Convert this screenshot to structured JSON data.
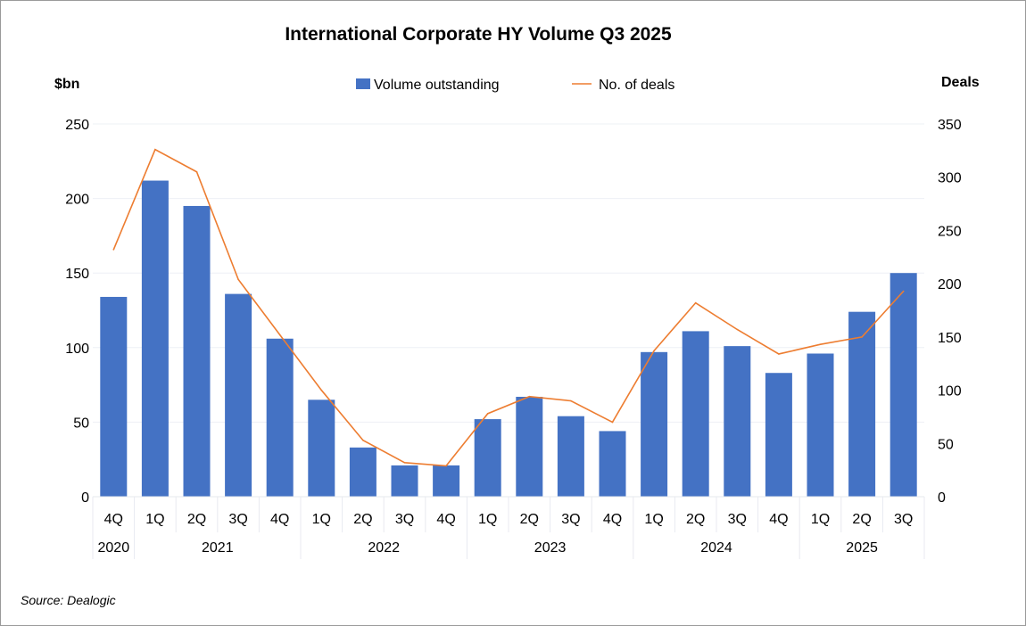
{
  "chart_data": {
    "type": "bar+line",
    "title": "International Corporate HY Volume Q3 2025",
    "y_left_label": "$bn",
    "y_right_label": "Deals",
    "y_left_range": [
      0,
      250
    ],
    "y_left_ticks": [
      0,
      50,
      100,
      150,
      200,
      250
    ],
    "y_right_range": [
      0,
      350
    ],
    "y_right_ticks": [
      0,
      50,
      100,
      150,
      200,
      250,
      300,
      350
    ],
    "grid": true,
    "legend_position": "top",
    "categories": [
      "4Q",
      "1Q",
      "2Q",
      "3Q",
      "4Q",
      "1Q",
      "2Q",
      "3Q",
      "4Q",
      "1Q",
      "2Q",
      "3Q",
      "4Q",
      "1Q",
      "2Q",
      "3Q",
      "4Q",
      "1Q",
      "2Q",
      "3Q"
    ],
    "year_groups": [
      {
        "label": "2020",
        "count": 1
      },
      {
        "label": "2021",
        "count": 4
      },
      {
        "label": "2022",
        "count": 4
      },
      {
        "label": "2023",
        "count": 4
      },
      {
        "label": "2024",
        "count": 4
      },
      {
        "label": "2025",
        "count": 3
      }
    ],
    "series": [
      {
        "name": "Volume outstanding",
        "type": "bar",
        "axis": "left",
        "color": "#4472C4",
        "values": [
          134,
          212,
          195,
          136,
          106,
          65,
          33,
          21,
          21,
          52,
          67,
          54,
          44,
          97,
          111,
          101,
          83,
          96,
          124,
          150
        ]
      },
      {
        "name": "No. of deals",
        "type": "line",
        "axis": "right",
        "color": "#ED7D31",
        "values": [
          232,
          326,
          305,
          204,
          152,
          100,
          53,
          32,
          29,
          78,
          94,
          90,
          70,
          137,
          182,
          157,
          134,
          143,
          150,
          193
        ]
      }
    ],
    "source": "Source: Dealogic"
  }
}
